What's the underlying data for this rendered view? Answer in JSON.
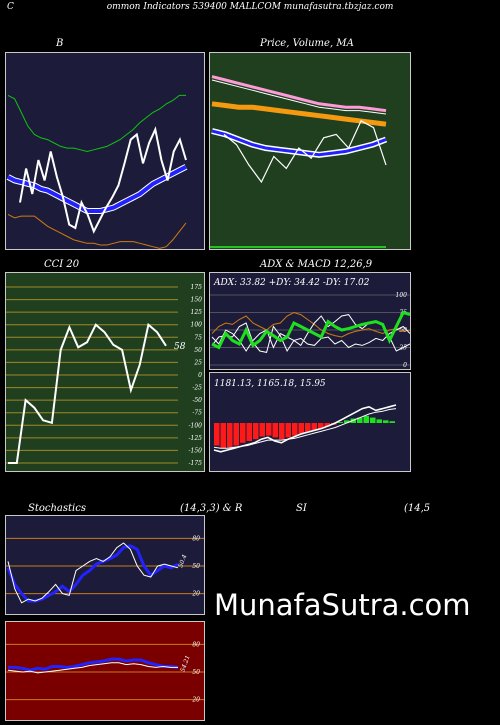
{
  "header": "ommon  Indicators 539400  MALLCOM munafasutra.tbzjaz.com",
  "header_prefix": "C",
  "watermark": "MunafaSutra.com",
  "colors": {
    "navy": "#1c1c3a",
    "green": "#1f3f1f",
    "maroon": "#7a0000",
    "grid_green": "#9a8a20",
    "grid_orange": "#c87a1a"
  },
  "chart_data": [
    {
      "id": "bb",
      "type": "line",
      "title": "B",
      "series": [
        {
          "name": "",
          "values": [
            88,
            86,
            78,
            70,
            65,
            63,
            62,
            60,
            58,
            57,
            57,
            56,
            55,
            56,
            57,
            58,
            60,
            62,
            65,
            68,
            72,
            75,
            78,
            80,
            83,
            85,
            88,
            88
          ]
        },
        {
          "name": "",
          "values": [
            40,
            38,
            37,
            36,
            35,
            33,
            32,
            30,
            28,
            26,
            24,
            22,
            20,
            20,
            20,
            21,
            22,
            24,
            26,
            28,
            30,
            33,
            36,
            38,
            40,
            42,
            44,
            46
          ]
        },
        {
          "name": "",
          "values": [
            18,
            16,
            17,
            17,
            17,
            14,
            11,
            9,
            7,
            5,
            3,
            2,
            1,
            1,
            0,
            0,
            1,
            2,
            2,
            2,
            1,
            0,
            -1,
            -2,
            -1,
            3,
            8,
            13
          ]
        },
        {
          "name": "",
          "values": [
            25,
            45,
            30,
            50,
            38,
            55,
            40,
            28,
            12,
            10,
            25,
            18,
            8,
            15,
            22,
            28,
            35,
            48,
            62,
            65,
            48,
            60,
            68,
            50,
            38,
            55,
            62,
            50
          ]
        }
      ]
    },
    {
      "id": "price",
      "type": "line",
      "title": "Price,  Volume,  MA",
      "title_bits": [
        "Price,",
        "Volume,",
        "MA"
      ],
      "series": [
        {
          "name": "",
          "values": [
            92,
            90,
            88,
            86,
            84,
            82,
            80,
            78,
            76,
            75,
            74,
            74,
            73,
            72
          ]
        },
        {
          "name": "",
          "values": [
            76,
            75,
            74,
            74,
            73,
            72,
            71,
            70,
            69,
            68,
            67,
            66,
            65,
            64
          ]
        },
        {
          "name": "",
          "values": [
            60,
            58,
            55,
            52,
            50,
            49,
            48,
            47,
            46,
            47,
            48,
            50,
            52,
            55
          ]
        },
        {
          "name": "",
          "values": [
            58,
            52,
            40,
            30,
            45,
            38,
            50,
            44,
            56,
            58,
            50,
            66,
            62,
            40
          ]
        }
      ]
    },
    {
      "id": "cci",
      "type": "line",
      "title": "CCI 20",
      "value_label": "58",
      "ticks": [
        175,
        150,
        125,
        100,
        75,
        50,
        25,
        0,
        -25,
        -50,
        -75,
        -100,
        -125,
        -150,
        -175
      ],
      "values": [
        -175,
        -175,
        -50,
        -65,
        -90,
        -95,
        50,
        95,
        55,
        65,
        100,
        85,
        60,
        50,
        -30,
        20,
        100,
        85,
        58
      ]
    },
    {
      "id": "adx",
      "type": "line",
      "title": "ADX  & MACD 12,26,9",
      "readout": "ADX: 33.82  +DY: 34.42  -DY: 17.02",
      "ticks": [
        100,
        75,
        50,
        25,
        0
      ],
      "series": [
        {
          "name": "",
          "values": [
            45,
            55,
            60,
            58,
            65,
            70,
            60,
            55,
            50,
            58,
            60,
            70,
            75,
            72,
            65,
            58,
            50,
            45,
            42,
            40,
            45,
            48,
            50,
            52,
            48,
            45,
            50,
            52,
            48,
            50
          ]
        },
        {
          "name": "",
          "values": [
            40,
            30,
            50,
            45,
            35,
            20,
            35,
            45,
            50,
            25,
            45,
            40,
            35,
            38,
            30,
            28,
            38,
            40,
            30,
            35,
            25,
            30,
            28,
            32,
            38,
            35,
            45,
            50,
            55,
            45
          ]
        },
        {
          "name": "",
          "values": [
            28,
            40,
            42,
            40,
            55,
            60,
            32,
            20,
            18,
            55,
            42,
            20,
            35,
            28,
            45,
            60,
            70,
            55,
            62,
            70,
            72,
            58,
            52,
            60,
            62,
            58,
            40,
            20,
            25,
            30
          ]
        },
        {
          "name": "",
          "values": [
            30,
            25,
            45,
            35,
            30,
            50,
            28,
            35,
            48,
            42,
            35,
            40,
            60,
            55,
            50,
            45,
            40,
            62,
            55,
            50,
            52,
            55,
            58,
            60,
            62,
            58,
            35,
            55,
            75,
            72
          ]
        }
      ]
    },
    {
      "id": "macd",
      "type": "bar",
      "title": "",
      "readout": "1181.13,  1165.18,  15.95",
      "hist": [
        -25,
        -28,
        -27,
        -25,
        -22,
        -20,
        -18,
        -15,
        -14,
        -16,
        -18,
        -16,
        -14,
        -12,
        -10,
        -8,
        -6,
        -4,
        -2,
        1,
        3,
        5,
        6,
        8,
        6,
        4,
        3,
        2
      ],
      "macd": [
        -30,
        -32,
        -30,
        -28,
        -26,
        -24,
        -22,
        -18,
        -16,
        -20,
        -22,
        -18,
        -15,
        -12,
        -10,
        -8,
        -6,
        -3,
        0,
        4,
        8,
        12,
        16,
        18,
        14,
        16,
        18,
        20
      ],
      "signal": [
        -27,
        -28,
        -28,
        -27,
        -26,
        -25,
        -23,
        -21,
        -19,
        -19,
        -19,
        -18,
        -17,
        -15,
        -13,
        -11,
        -9,
        -7,
        -5,
        -2,
        1,
        4,
        7,
        10,
        12,
        13,
        15,
        16
      ]
    },
    {
      "id": "stoch",
      "type": "line",
      "title": "Stochastics",
      "params": "(14,3,3)  &  R",
      "value_label": "50.4",
      "ticks": [
        80,
        50,
        20
      ],
      "series": [
        {
          "name": "",
          "values": [
            48,
            30,
            20,
            12,
            12,
            14,
            18,
            22,
            28,
            22,
            30,
            40,
            45,
            52,
            55,
            58,
            62,
            70,
            72,
            68,
            50,
            40,
            45,
            50,
            48,
            52
          ]
        },
        {
          "name": "",
          "values": [
            55,
            25,
            10,
            14,
            12,
            15,
            22,
            30,
            20,
            18,
            45,
            50,
            55,
            58,
            55,
            60,
            70,
            75,
            68,
            50,
            40,
            38,
            50,
            52,
            50,
            48
          ]
        }
      ]
    },
    {
      "id": "rsi",
      "type": "line",
      "title": "SI",
      "params": "(14,5",
      "value_label": "54.21",
      "ticks": [
        80,
        50,
        20
      ],
      "series": [
        {
          "name": "",
          "values": [
            55,
            55,
            54,
            52,
            54,
            53,
            56,
            56,
            55,
            56,
            58,
            60,
            61,
            62,
            64,
            64,
            62,
            63,
            63,
            60,
            58,
            56,
            56,
            55
          ]
        },
        {
          "name": "",
          "values": [
            52,
            51,
            50,
            51,
            49,
            50,
            51,
            52,
            53,
            54,
            55,
            57,
            58,
            59,
            60,
            60,
            58,
            59,
            58,
            56,
            55,
            56,
            55,
            55
          ]
        }
      ]
    }
  ]
}
